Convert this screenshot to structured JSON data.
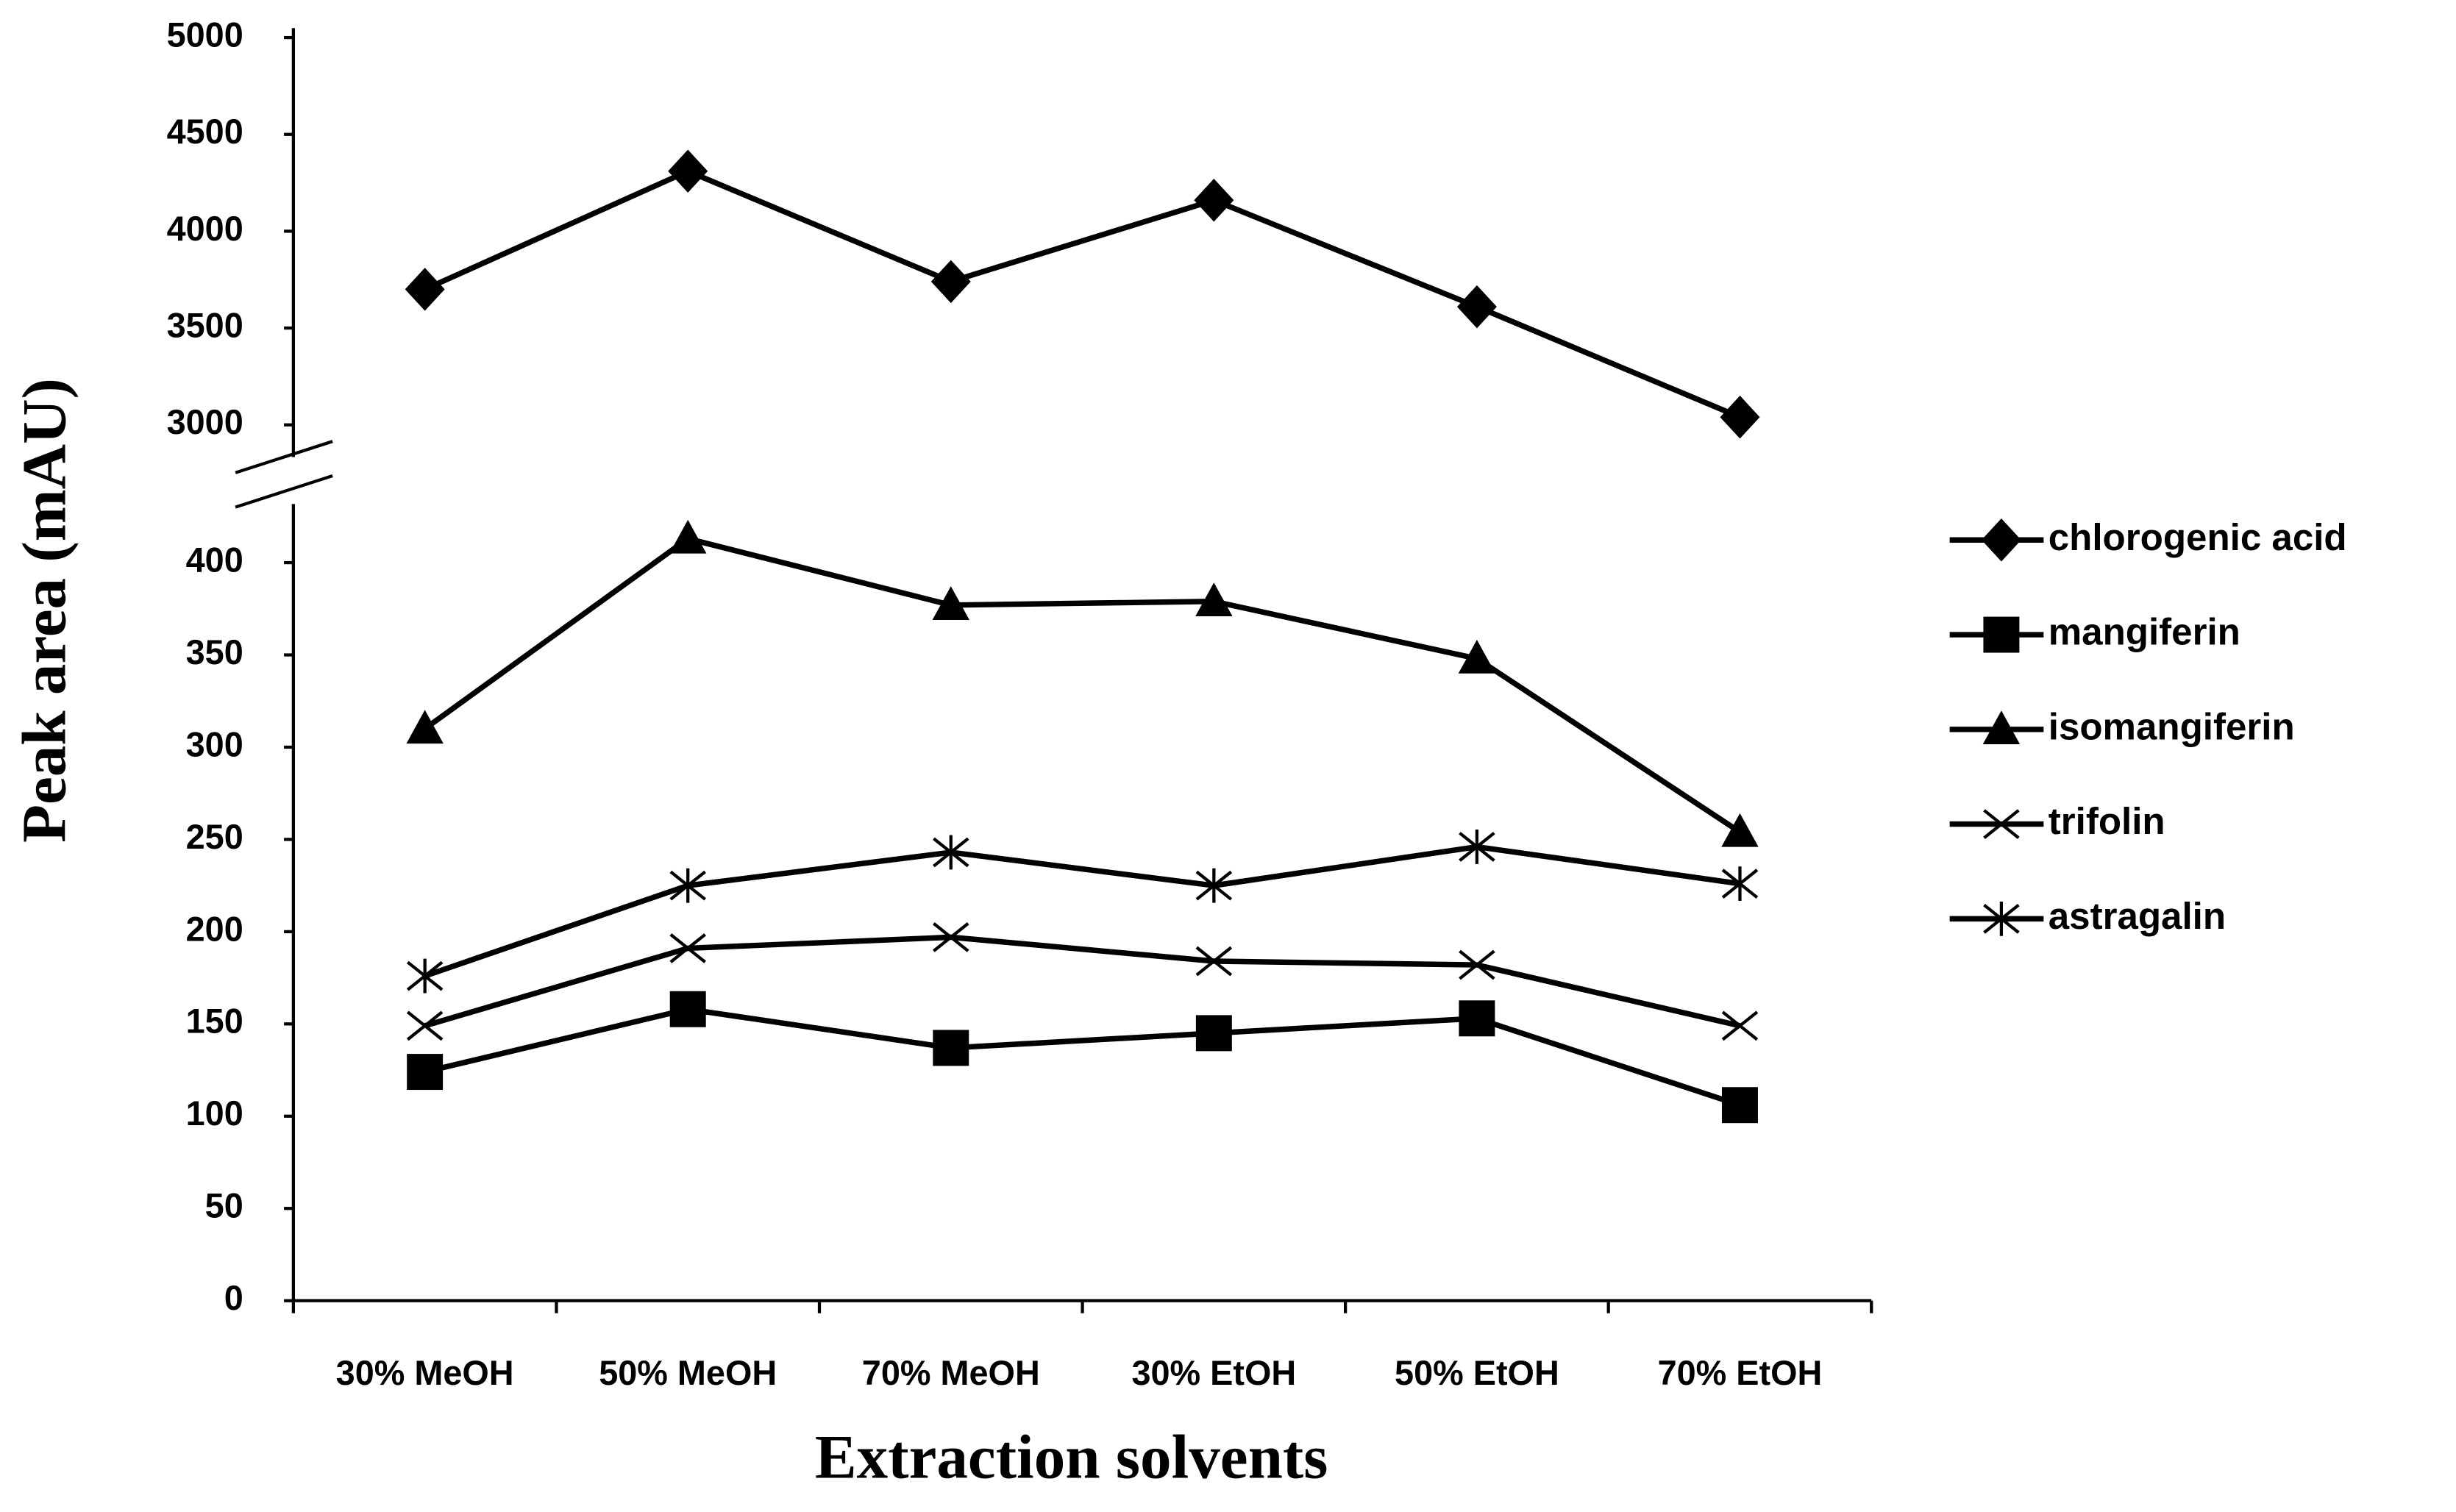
{
  "chart_data": {
    "type": "line",
    "x_label": "Extraction solvents",
    "y_label": "Peak area (mAU)",
    "categories": [
      "30% MeOH",
      "50% MeOH",
      "70% MeOH",
      "30% EtOH",
      "50% EtOH",
      "70% EtOH"
    ],
    "series": [
      {
        "name": "chlorogenic acid",
        "color": "#000000",
        "marker": "diamond",
        "axis": "y2",
        "values": [
          3700,
          4310,
          3740,
          4160,
          3610,
          3040
        ]
      },
      {
        "name": "mangiferin",
        "color": "#000000",
        "marker": "square",
        "values": [
          124,
          158,
          137,
          145,
          153,
          106
        ]
      },
      {
        "name": "isomangiferin",
        "color": "#000000",
        "marker": "triangle",
        "values": [
          310,
          413,
          377,
          379,
          348,
          254
        ]
      },
      {
        "name": "trifolin",
        "color": "#000000",
        "marker": "x",
        "values": [
          149,
          191,
          197,
          184,
          182,
          149
        ]
      },
      {
        "name": "astragalin",
        "color": "#000000",
        "marker": "asterisk",
        "values": [
          176,
          225,
          243,
          225,
          246,
          226
        ]
      }
    ],
    "ylim": [
      0,
      425
    ],
    "yticks": [
      0,
      50,
      100,
      150,
      200,
      250,
      300,
      350,
      400
    ],
    "y2lim": [
      2850,
      5000
    ],
    "y2ticks": [
      3000,
      3500,
      4000,
      4500,
      5000
    ],
    "grid": false,
    "legend": "right"
  }
}
